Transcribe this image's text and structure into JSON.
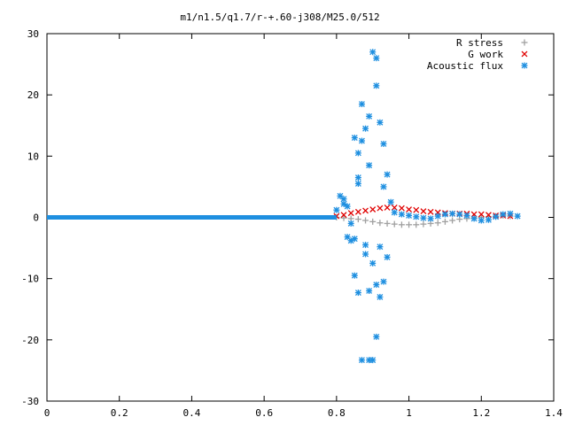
{
  "chart_data": {
    "type": "scatter",
    "title": "m1/n1.5/q1.7/r-+.60-j308/M25.0/512",
    "xlabel": "",
    "ylabel": "",
    "xlim": [
      0,
      1.4
    ],
    "ylim": [
      -30,
      30
    ],
    "x_ticks": [
      "0",
      "0.2",
      "0.4",
      "0.6",
      "0.8",
      "1",
      "1.2",
      "1.4"
    ],
    "y_ticks": [
      "30",
      "20",
      "10",
      "0",
      "-10",
      "-20",
      "-30"
    ],
    "grid": false,
    "legend_position": "top-right",
    "series": [
      {
        "name": "R stress",
        "marker": "plus",
        "color": "#a0a0a0",
        "points": [
          [
            0.8,
            0.0
          ],
          [
            0.82,
            -0.1
          ],
          [
            0.84,
            -0.2
          ],
          [
            0.86,
            -0.3
          ],
          [
            0.88,
            -0.5
          ],
          [
            0.9,
            -0.7
          ],
          [
            0.92,
            -0.9
          ],
          [
            0.94,
            -1.0
          ],
          [
            0.96,
            -1.1
          ],
          [
            0.98,
            -1.2
          ],
          [
            1.0,
            -1.2
          ],
          [
            1.02,
            -1.2
          ],
          [
            1.04,
            -1.1
          ],
          [
            1.06,
            -1.0
          ],
          [
            1.08,
            -0.9
          ],
          [
            1.1,
            -0.7
          ],
          [
            1.12,
            -0.5
          ],
          [
            1.14,
            -0.3
          ],
          [
            1.16,
            -0.2
          ],
          [
            1.18,
            -0.1
          ],
          [
            1.2,
            0.0
          ],
          [
            1.22,
            0.1
          ],
          [
            1.24,
            0.2
          ],
          [
            1.26,
            0.3
          ],
          [
            1.28,
            0.2
          ]
        ]
      },
      {
        "name": "G work",
        "marker": "cross",
        "color": "#e00000",
        "points": [
          [
            0.8,
            0.2
          ],
          [
            0.82,
            0.4
          ],
          [
            0.84,
            0.7
          ],
          [
            0.86,
            0.9
          ],
          [
            0.88,
            1.1
          ],
          [
            0.9,
            1.3
          ],
          [
            0.92,
            1.5
          ],
          [
            0.94,
            1.6
          ],
          [
            0.96,
            1.6
          ],
          [
            0.98,
            1.5
          ],
          [
            1.0,
            1.3
          ],
          [
            1.02,
            1.2
          ],
          [
            1.04,
            1.0
          ],
          [
            1.06,
            0.9
          ],
          [
            1.08,
            0.8
          ],
          [
            1.1,
            0.7
          ],
          [
            1.12,
            0.6
          ],
          [
            1.14,
            0.6
          ],
          [
            1.16,
            0.6
          ],
          [
            1.18,
            0.5
          ],
          [
            1.2,
            0.5
          ],
          [
            1.22,
            0.4
          ],
          [
            1.24,
            0.3
          ],
          [
            1.26,
            0.3
          ],
          [
            1.28,
            0.2
          ]
        ]
      },
      {
        "name": "Acoustic flux",
        "marker": "star",
        "color": "#1e8fe0",
        "points": [
          [
            0.8,
            1.2
          ],
          [
            0.81,
            3.5
          ],
          [
            0.82,
            2.2
          ],
          [
            0.83,
            1.8
          ],
          [
            0.84,
            -1.0
          ],
          [
            0.85,
            -3.5
          ],
          [
            0.85,
            13.0
          ],
          [
            0.86,
            10.5
          ],
          [
            0.86,
            6.5
          ],
          [
            0.87,
            12.5
          ],
          [
            0.87,
            18.5
          ],
          [
            0.88,
            14.5
          ],
          [
            0.88,
            -4.5
          ],
          [
            0.89,
            16.5
          ],
          [
            0.89,
            8.5
          ],
          [
            0.89,
            -12.0
          ],
          [
            0.9,
            27.0
          ],
          [
            0.9,
            -7.5
          ],
          [
            0.91,
            21.5
          ],
          [
            0.91,
            26.0
          ],
          [
            0.91,
            -11.0
          ],
          [
            0.92,
            15.5
          ],
          [
            0.92,
            -13.0
          ],
          [
            0.93,
            12.0
          ],
          [
            0.93,
            -10.5
          ],
          [
            0.94,
            7.0
          ],
          [
            0.94,
            -6.5
          ],
          [
            0.95,
            2.5
          ],
          [
            0.9,
            -23.3
          ],
          [
            0.89,
            -23.3
          ],
          [
            0.87,
            -23.3
          ],
          [
            0.91,
            -19.5
          ],
          [
            0.86,
            -12.3
          ],
          [
            0.85,
            -9.5
          ],
          [
            0.83,
            -3.2
          ],
          [
            0.82,
            3.0
          ],
          [
            0.84,
            -3.8
          ],
          [
            0.88,
            -6.0
          ],
          [
            0.92,
            -4.8
          ],
          [
            0.93,
            5.0
          ],
          [
            0.86,
            5.5
          ],
          [
            0.96,
            0.8
          ],
          [
            0.98,
            0.5
          ],
          [
            1.0,
            0.3
          ],
          [
            1.02,
            0.1
          ],
          [
            1.04,
            -0.1
          ],
          [
            1.06,
            -0.2
          ],
          [
            1.08,
            0.2
          ],
          [
            1.1,
            0.5
          ],
          [
            1.12,
            0.6
          ],
          [
            1.14,
            0.5
          ],
          [
            1.16,
            0.3
          ],
          [
            1.18,
            -0.2
          ],
          [
            1.2,
            -0.5
          ],
          [
            1.22,
            -0.4
          ],
          [
            1.24,
            0.1
          ],
          [
            1.26,
            0.5
          ],
          [
            1.28,
            0.6
          ],
          [
            1.3,
            0.2
          ]
        ]
      }
    ]
  }
}
